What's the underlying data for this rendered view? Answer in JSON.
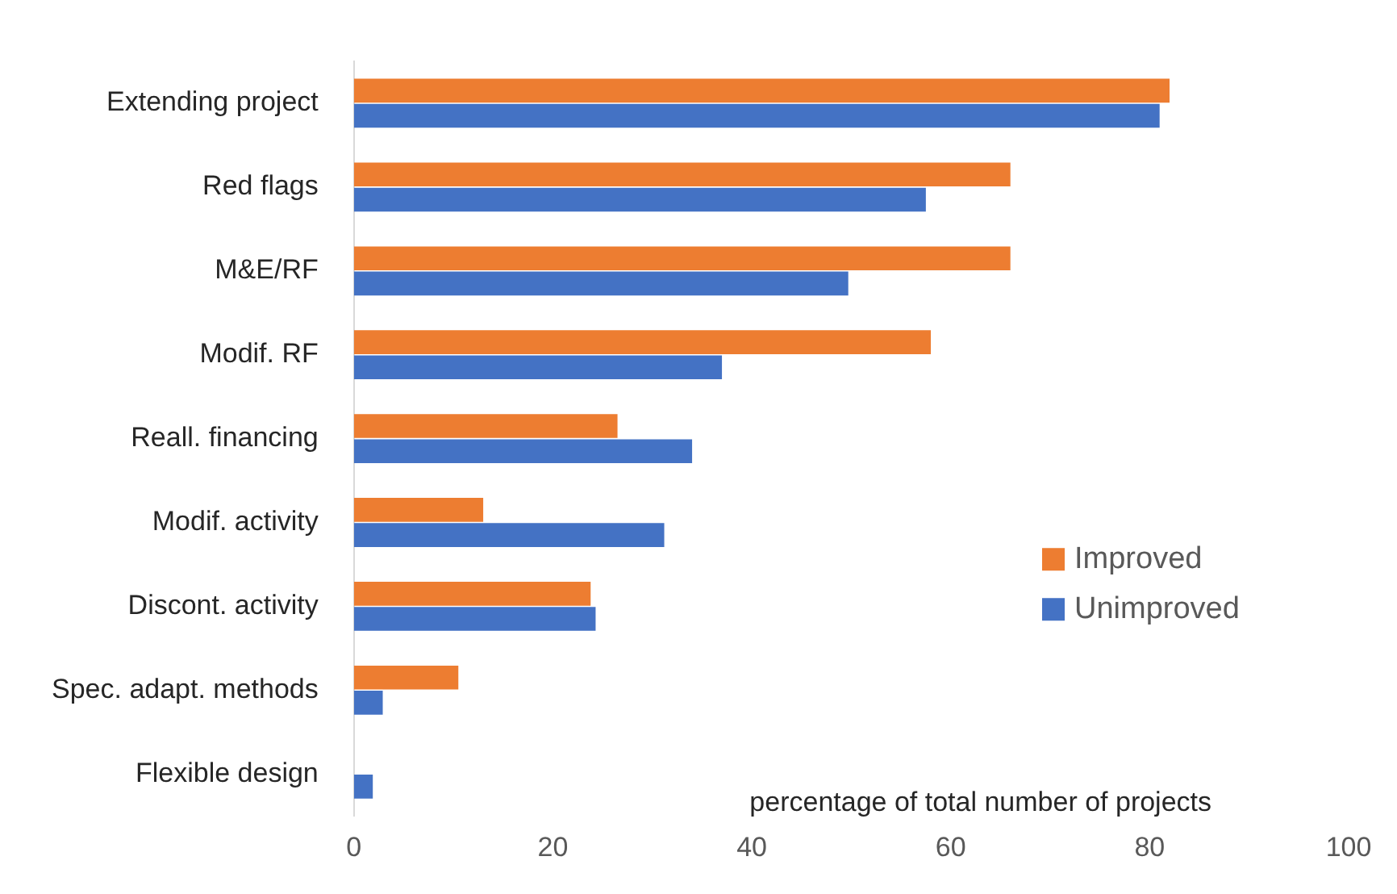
{
  "chart_data": {
    "type": "bar",
    "orientation": "horizontal",
    "xlabel": "percentage of total number of projects",
    "categories": [
      "Extending project",
      "Red flags",
      "M&E/RF",
      "Modif. RF",
      "Reall. financing",
      "Modif. activity",
      "Discont. activity",
      "Spec. adapt. methods",
      "Flexible design"
    ],
    "series": [
      {
        "name": "Improved",
        "color": "#ed7d31",
        "values": [
          82,
          66,
          66,
          58,
          26.5,
          13,
          23.8,
          10.5,
          0
        ]
      },
      {
        "name": "Unimproved",
        "color": "#4472c4",
        "values": [
          81,
          57.5,
          49.7,
          37,
          34,
          31.2,
          24.3,
          2.9,
          1.9
        ]
      }
    ],
    "xlim": [
      0,
      100
    ],
    "xticks": [
      0,
      20,
      40,
      60,
      80,
      100
    ],
    "grid": false,
    "legend": "right"
  }
}
